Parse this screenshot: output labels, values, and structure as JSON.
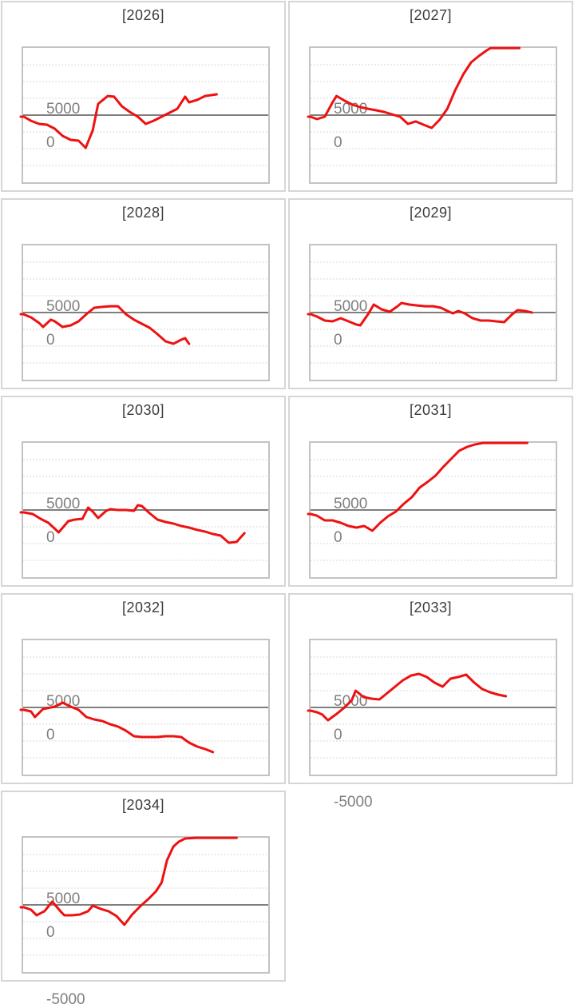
{
  "axis": {
    "yticks": [
      "5000",
      "0",
      "-5000"
    ],
    "ylim": [
      -6900,
      6670
    ],
    "grid": "dashed-horizontal",
    "zero_axis": "solid-gray"
  },
  "colors": {
    "series_line": "#ee1111",
    "zero_axis": "#7f7f7f",
    "gridline": "#d9d9d9",
    "plot_border": "#c3c3c3",
    "card_border": "#d6d6d6",
    "tick_label": "#7f7f7f",
    "title": "#3b3b3b",
    "background": "#ffffff"
  },
  "chart_data": [
    {
      "type": "line",
      "title": "[2026]",
      "ylabel_ticks": [
        5000,
        0,
        -5000
      ],
      "points": [
        [
          0.003,
          -160
        ],
        [
          0.032,
          -560
        ],
        [
          0.065,
          -870
        ],
        [
          0.097,
          -950
        ],
        [
          0.129,
          -1350
        ],
        [
          0.161,
          -2060
        ],
        [
          0.194,
          -2460
        ],
        [
          0.226,
          -2540
        ],
        [
          0.255,
          -3250
        ],
        [
          0.284,
          -1500
        ],
        [
          0.306,
          1110
        ],
        [
          0.345,
          1900
        ],
        [
          0.371,
          1830
        ],
        [
          0.403,
          870
        ],
        [
          0.435,
          320
        ],
        [
          0.468,
          -160
        ],
        [
          0.5,
          -870
        ],
        [
          0.532,
          -560
        ],
        [
          0.565,
          -160
        ],
        [
          0.597,
          240
        ],
        [
          0.629,
          630
        ],
        [
          0.661,
          1830
        ],
        [
          0.677,
          1270
        ],
        [
          0.71,
          1510
        ],
        [
          0.742,
          1900
        ],
        [
          0.79,
          2060
        ]
      ]
    },
    {
      "type": "line",
      "title": "[2027]",
      "ylabel_ticks": [
        5000,
        0,
        -5000
      ],
      "points": [
        [
          0.0,
          -160
        ],
        [
          0.026,
          -400
        ],
        [
          0.058,
          -160
        ],
        [
          0.09,
          1270
        ],
        [
          0.106,
          1900
        ],
        [
          0.139,
          1430
        ],
        [
          0.171,
          1030
        ],
        [
          0.203,
          790
        ],
        [
          0.235,
          630
        ],
        [
          0.268,
          480
        ],
        [
          0.3,
          320
        ],
        [
          0.332,
          80
        ],
        [
          0.365,
          -160
        ],
        [
          0.397,
          -870
        ],
        [
          0.429,
          -630
        ],
        [
          0.461,
          -950
        ],
        [
          0.494,
          -1270
        ],
        [
          0.526,
          -480
        ],
        [
          0.558,
          630
        ],
        [
          0.59,
          2460
        ],
        [
          0.623,
          4050
        ],
        [
          0.655,
          5240
        ],
        [
          0.687,
          5870
        ],
        [
          0.719,
          6430
        ],
        [
          0.735,
          6660
        ],
        [
          0.774,
          6660
        ],
        [
          0.813,
          6660
        ],
        [
          0.852,
          6660
        ]
      ]
    },
    {
      "type": "line",
      "title": "[2028]",
      "ylabel_ticks": [
        5000,
        0,
        -5000
      ],
      "points": [
        [
          0.0,
          -160
        ],
        [
          0.032,
          -480
        ],
        [
          0.065,
          -1030
        ],
        [
          0.081,
          -1430
        ],
        [
          0.113,
          -710
        ],
        [
          0.129,
          -870
        ],
        [
          0.161,
          -1430
        ],
        [
          0.194,
          -1270
        ],
        [
          0.226,
          -870
        ],
        [
          0.258,
          -160
        ],
        [
          0.29,
          480
        ],
        [
          0.323,
          560
        ],
        [
          0.355,
          630
        ],
        [
          0.387,
          630
        ],
        [
          0.419,
          -160
        ],
        [
          0.452,
          -710
        ],
        [
          0.484,
          -1110
        ],
        [
          0.516,
          -1510
        ],
        [
          0.548,
          -2140
        ],
        [
          0.581,
          -2860
        ],
        [
          0.613,
          -3100
        ],
        [
          0.645,
          -2700
        ],
        [
          0.661,
          -2540
        ],
        [
          0.677,
          -3100
        ]
      ]
    },
    {
      "type": "line",
      "title": "[2029]",
      "ylabel_ticks": [
        5000,
        0,
        -5000
      ],
      "points": [
        [
          0.0,
          -160
        ],
        [
          0.026,
          -400
        ],
        [
          0.058,
          -790
        ],
        [
          0.09,
          -870
        ],
        [
          0.123,
          -560
        ],
        [
          0.155,
          -870
        ],
        [
          0.187,
          -1190
        ],
        [
          0.203,
          -1270
        ],
        [
          0.235,
          -160
        ],
        [
          0.258,
          790
        ],
        [
          0.29,
          320
        ],
        [
          0.323,
          80
        ],
        [
          0.355,
          630
        ],
        [
          0.371,
          950
        ],
        [
          0.403,
          790
        ],
        [
          0.435,
          710
        ],
        [
          0.468,
          630
        ],
        [
          0.5,
          630
        ],
        [
          0.532,
          480
        ],
        [
          0.565,
          80
        ],
        [
          0.581,
          -80
        ],
        [
          0.603,
          160
        ],
        [
          0.629,
          -80
        ],
        [
          0.661,
          -560
        ],
        [
          0.694,
          -790
        ],
        [
          0.726,
          -790
        ],
        [
          0.758,
          -870
        ],
        [
          0.79,
          -950
        ],
        [
          0.823,
          -160
        ],
        [
          0.845,
          240
        ],
        [
          0.874,
          160
        ],
        [
          0.903,
          0
        ]
      ]
    },
    {
      "type": "line",
      "title": "[2030]",
      "ylabel_ticks": [
        5000,
        0,
        -5000
      ],
      "points": [
        [
          0.003,
          -240
        ],
        [
          0.039,
          -400
        ],
        [
          0.071,
          -870
        ],
        [
          0.103,
          -1270
        ],
        [
          0.145,
          -2220
        ],
        [
          0.184,
          -1110
        ],
        [
          0.21,
          -950
        ],
        [
          0.242,
          -870
        ],
        [
          0.265,
          240
        ],
        [
          0.284,
          -160
        ],
        [
          0.306,
          -790
        ],
        [
          0.339,
          -80
        ],
        [
          0.355,
          80
        ],
        [
          0.387,
          0
        ],
        [
          0.419,
          0
        ],
        [
          0.452,
          -80
        ],
        [
          0.468,
          480
        ],
        [
          0.484,
          400
        ],
        [
          0.516,
          -320
        ],
        [
          0.548,
          -950
        ],
        [
          0.581,
          -1190
        ],
        [
          0.613,
          -1350
        ],
        [
          0.645,
          -1590
        ],
        [
          0.677,
          -1750
        ],
        [
          0.71,
          -1980
        ],
        [
          0.742,
          -2140
        ],
        [
          0.774,
          -2380
        ],
        [
          0.806,
          -2540
        ],
        [
          0.839,
          -3250
        ],
        [
          0.871,
          -3170
        ],
        [
          0.903,
          -2300
        ]
      ]
    },
    {
      "type": "line",
      "title": "[2031]",
      "ylabel_ticks": [
        5000,
        0,
        -5000
      ],
      "points": [
        [
          0.0,
          -400
        ],
        [
          0.026,
          -560
        ],
        [
          0.058,
          -1030
        ],
        [
          0.09,
          -1030
        ],
        [
          0.123,
          -1270
        ],
        [
          0.155,
          -1590
        ],
        [
          0.187,
          -1750
        ],
        [
          0.219,
          -1590
        ],
        [
          0.252,
          -2060
        ],
        [
          0.284,
          -1270
        ],
        [
          0.316,
          -630
        ],
        [
          0.348,
          -160
        ],
        [
          0.381,
          630
        ],
        [
          0.413,
          1270
        ],
        [
          0.445,
          2220
        ],
        [
          0.477,
          2780
        ],
        [
          0.51,
          3410
        ],
        [
          0.542,
          4290
        ],
        [
          0.574,
          5080
        ],
        [
          0.606,
          5870
        ],
        [
          0.639,
          6270
        ],
        [
          0.671,
          6510
        ],
        [
          0.703,
          6660
        ],
        [
          0.748,
          6660
        ],
        [
          0.794,
          6660
        ],
        [
          0.839,
          6660
        ],
        [
          0.884,
          6660
        ]
      ]
    },
    {
      "type": "line",
      "title": "[2032]",
      "ylabel_ticks": [
        5000,
        0,
        -5000
      ],
      "points": [
        [
          0.003,
          -240
        ],
        [
          0.032,
          -400
        ],
        [
          0.048,
          -950
        ],
        [
          0.081,
          -160
        ],
        [
          0.097,
          -80
        ],
        [
          0.129,
          80
        ],
        [
          0.161,
          480
        ],
        [
          0.194,
          80
        ],
        [
          0.226,
          -240
        ],
        [
          0.258,
          -950
        ],
        [
          0.29,
          -1190
        ],
        [
          0.323,
          -1350
        ],
        [
          0.355,
          -1670
        ],
        [
          0.387,
          -1900
        ],
        [
          0.419,
          -2300
        ],
        [
          0.452,
          -2860
        ],
        [
          0.484,
          -2940
        ],
        [
          0.516,
          -2940
        ],
        [
          0.548,
          -2940
        ],
        [
          0.581,
          -2860
        ],
        [
          0.613,
          -2860
        ],
        [
          0.645,
          -2940
        ],
        [
          0.677,
          -3490
        ],
        [
          0.71,
          -3890
        ],
        [
          0.742,
          -4130
        ],
        [
          0.774,
          -4440
        ]
      ]
    },
    {
      "type": "line",
      "title": "[2033]",
      "ylabel_ticks": [
        5000,
        0,
        -5000
      ],
      "points": [
        [
          0.0,
          -320
        ],
        [
          0.026,
          -480
        ],
        [
          0.048,
          -710
        ],
        [
          0.071,
          -1270
        ],
        [
          0.103,
          -710
        ],
        [
          0.135,
          -80
        ],
        [
          0.168,
          710
        ],
        [
          0.184,
          1670
        ],
        [
          0.216,
          1030
        ],
        [
          0.248,
          870
        ],
        [
          0.281,
          790
        ],
        [
          0.313,
          1430
        ],
        [
          0.345,
          2060
        ],
        [
          0.377,
          2700
        ],
        [
          0.41,
          3170
        ],
        [
          0.442,
          3330
        ],
        [
          0.474,
          3020
        ],
        [
          0.506,
          2460
        ],
        [
          0.539,
          2060
        ],
        [
          0.571,
          2860
        ],
        [
          0.603,
          3020
        ],
        [
          0.635,
          3250
        ],
        [
          0.668,
          2460
        ],
        [
          0.7,
          1830
        ],
        [
          0.732,
          1510
        ],
        [
          0.765,
          1270
        ],
        [
          0.797,
          1110
        ]
      ]
    },
    {
      "type": "line",
      "title": "[2034]",
      "ylabel_ticks": [
        5000,
        0,
        -5000
      ],
      "points": [
        [
          0.003,
          -240
        ],
        [
          0.032,
          -480
        ],
        [
          0.055,
          -1030
        ],
        [
          0.087,
          -630
        ],
        [
          0.119,
          320
        ],
        [
          0.152,
          -630
        ],
        [
          0.168,
          -1030
        ],
        [
          0.2,
          -1030
        ],
        [
          0.232,
          -950
        ],
        [
          0.265,
          -630
        ],
        [
          0.284,
          -80
        ],
        [
          0.316,
          -400
        ],
        [
          0.348,
          -630
        ],
        [
          0.381,
          -1110
        ],
        [
          0.413,
          -1980
        ],
        [
          0.445,
          -950
        ],
        [
          0.477,
          -160
        ],
        [
          0.51,
          560
        ],
        [
          0.542,
          1350
        ],
        [
          0.565,
          2220
        ],
        [
          0.587,
          4440
        ],
        [
          0.613,
          5790
        ],
        [
          0.635,
          6270
        ],
        [
          0.661,
          6590
        ],
        [
          0.703,
          6660
        ],
        [
          0.745,
          6660
        ],
        [
          0.787,
          6660
        ],
        [
          0.829,
          6660
        ],
        [
          0.871,
          6660
        ]
      ]
    }
  ]
}
